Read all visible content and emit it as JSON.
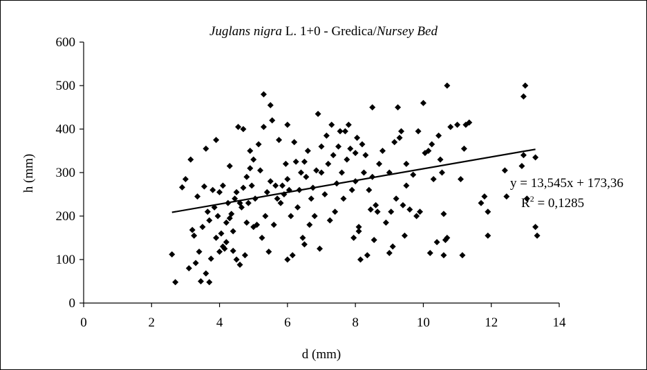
{
  "chart_data": {
    "type": "scatter",
    "title": "",
    "title_parts": {
      "species": "Juglans nigra",
      "rest": " L. 1+0 - Gredica/",
      "bed": "Nursey Bed"
    },
    "xlabel": "d (mm)",
    "ylabel": "h (mm)",
    "xlim": [
      0,
      14
    ],
    "ylim": [
      0,
      600
    ],
    "x_ticks": [
      "0",
      "2",
      "4",
      "6",
      "8",
      "10",
      "12",
      "14"
    ],
    "y_ticks": [
      "0",
      "100",
      "200",
      "300",
      "400",
      "500",
      "600"
    ],
    "grid": false,
    "legend": "none",
    "marker": "diamond",
    "marker_color": "#000000",
    "trendline": {
      "type": "linear",
      "slope": 13.545,
      "intercept": 173.36,
      "x_range": [
        2.6,
        13.3
      ],
      "equation_label": "y = 13,545x + 173,36",
      "r2_prefix": "R",
      "r2_sup": "2",
      "r2_suffix": " = 0,1285"
    },
    "points": [
      [
        2.6,
        112
      ],
      [
        2.7,
        48
      ],
      [
        2.9,
        266
      ],
      [
        3.0,
        285
      ],
      [
        3.1,
        80
      ],
      [
        3.15,
        330
      ],
      [
        3.2,
        168
      ],
      [
        3.25,
        155
      ],
      [
        3.3,
        92
      ],
      [
        3.35,
        245
      ],
      [
        3.4,
        118
      ],
      [
        3.45,
        50
      ],
      [
        3.5,
        175
      ],
      [
        3.55,
        268
      ],
      [
        3.6,
        68
      ],
      [
        3.6,
        355
      ],
      [
        3.65,
        210
      ],
      [
        3.7,
        190
      ],
      [
        3.7,
        48
      ],
      [
        3.75,
        102
      ],
      [
        3.8,
        260
      ],
      [
        3.85,
        220
      ],
      [
        3.9,
        150
      ],
      [
        3.9,
        375
      ],
      [
        3.95,
        200
      ],
      [
        4.0,
        118
      ],
      [
        4.0,
        255
      ],
      [
        4.05,
        160
      ],
      [
        4.1,
        130
      ],
      [
        4.1,
        270
      ],
      [
        4.15,
        125
      ],
      [
        4.2,
        185
      ],
      [
        4.2,
        140
      ],
      [
        4.25,
        230
      ],
      [
        4.3,
        315
      ],
      [
        4.3,
        195
      ],
      [
        4.35,
        205
      ],
      [
        4.4,
        120
      ],
      [
        4.4,
        165
      ],
      [
        4.45,
        240
      ],
      [
        4.5,
        100
      ],
      [
        4.5,
        255
      ],
      [
        4.55,
        405
      ],
      [
        4.6,
        88
      ],
      [
        4.6,
        230
      ],
      [
        4.65,
        220
      ],
      [
        4.7,
        400
      ],
      [
        4.7,
        265
      ],
      [
        4.75,
        110
      ],
      [
        4.8,
        185
      ],
      [
        4.8,
        290
      ],
      [
        4.85,
        230
      ],
      [
        4.9,
        310
      ],
      [
        4.9,
        350
      ],
      [
        4.95,
        270
      ],
      [
        5.0,
        175
      ],
      [
        5.0,
        330
      ],
      [
        5.05,
        240
      ],
      [
        5.1,
        180
      ],
      [
        5.15,
        365
      ],
      [
        5.2,
        305
      ],
      [
        5.25,
        150
      ],
      [
        5.3,
        480
      ],
      [
        5.3,
        405
      ],
      [
        5.35,
        200
      ],
      [
        5.4,
        255
      ],
      [
        5.45,
        118
      ],
      [
        5.5,
        280
      ],
      [
        5.5,
        455
      ],
      [
        5.55,
        420
      ],
      [
        5.6,
        180
      ],
      [
        5.65,
        270
      ],
      [
        5.7,
        240
      ],
      [
        5.75,
        375
      ],
      [
        5.8,
        230
      ],
      [
        5.85,
        270
      ],
      [
        5.9,
        250
      ],
      [
        5.95,
        320
      ],
      [
        6.0,
        100
      ],
      [
        6.0,
        410
      ],
      [
        6.0,
        285
      ],
      [
        6.05,
        260
      ],
      [
        6.1,
        200
      ],
      [
        6.15,
        110
      ],
      [
        6.2,
        370
      ],
      [
        6.25,
        325
      ],
      [
        6.3,
        220
      ],
      [
        6.35,
        260
      ],
      [
        6.4,
        300
      ],
      [
        6.45,
        150
      ],
      [
        6.5,
        135
      ],
      [
        6.5,
        325
      ],
      [
        6.55,
        290
      ],
      [
        6.6,
        350
      ],
      [
        6.65,
        180
      ],
      [
        6.7,
        240
      ],
      [
        6.75,
        265
      ],
      [
        6.8,
        200
      ],
      [
        6.85,
        305
      ],
      [
        6.9,
        435
      ],
      [
        6.95,
        125
      ],
      [
        7.0,
        360
      ],
      [
        7.0,
        300
      ],
      [
        7.1,
        250
      ],
      [
        7.15,
        385
      ],
      [
        7.2,
        320
      ],
      [
        7.25,
        190
      ],
      [
        7.3,
        410
      ],
      [
        7.35,
        340
      ],
      [
        7.4,
        210
      ],
      [
        7.45,
        275
      ],
      [
        7.5,
        360
      ],
      [
        7.55,
        395
      ],
      [
        7.6,
        300
      ],
      [
        7.65,
        240
      ],
      [
        7.7,
        395
      ],
      [
        7.75,
        330
      ],
      [
        7.8,
        410
      ],
      [
        7.85,
        355
      ],
      [
        7.9,
        260
      ],
      [
        7.95,
        150
      ],
      [
        8.0,
        280
      ],
      [
        8.0,
        345
      ],
      [
        8.05,
        380
      ],
      [
        8.1,
        165
      ],
      [
        8.1,
        175
      ],
      [
        8.15,
        100
      ],
      [
        8.2,
        365
      ],
      [
        8.25,
        300
      ],
      [
        8.3,
        340
      ],
      [
        8.35,
        110
      ],
      [
        8.4,
        260
      ],
      [
        8.45,
        215
      ],
      [
        8.5,
        450
      ],
      [
        8.5,
        290
      ],
      [
        8.55,
        145
      ],
      [
        8.6,
        225
      ],
      [
        8.65,
        210
      ],
      [
        8.7,
        320
      ],
      [
        8.8,
        350
      ],
      [
        8.9,
        185
      ],
      [
        9.0,
        115
      ],
      [
        9.0,
        300
      ],
      [
        9.05,
        210
      ],
      [
        9.1,
        130
      ],
      [
        9.15,
        370
      ],
      [
        9.2,
        240
      ],
      [
        9.25,
        450
      ],
      [
        9.3,
        380
      ],
      [
        9.35,
        395
      ],
      [
        9.4,
        225
      ],
      [
        9.45,
        155
      ],
      [
        9.5,
        270
      ],
      [
        9.5,
        320
      ],
      [
        9.6,
        215
      ],
      [
        9.7,
        295
      ],
      [
        9.8,
        200
      ],
      [
        9.85,
        395
      ],
      [
        9.9,
        210
      ],
      [
        10.0,
        460
      ],
      [
        10.05,
        345
      ],
      [
        10.15,
        350
      ],
      [
        10.2,
        115
      ],
      [
        10.25,
        365
      ],
      [
        10.3,
        285
      ],
      [
        10.4,
        140
      ],
      [
        10.45,
        385
      ],
      [
        10.5,
        330
      ],
      [
        10.55,
        300
      ],
      [
        10.6,
        110
      ],
      [
        10.6,
        205
      ],
      [
        10.65,
        145
      ],
      [
        10.7,
        500
      ],
      [
        10.7,
        150
      ],
      [
        10.8,
        405
      ],
      [
        11.0,
        410
      ],
      [
        11.1,
        285
      ],
      [
        11.15,
        110
      ],
      [
        11.2,
        355
      ],
      [
        11.25,
        410
      ],
      [
        11.35,
        415
      ],
      [
        11.7,
        230
      ],
      [
        11.8,
        245
      ],
      [
        11.9,
        155
      ],
      [
        11.9,
        210
      ],
      [
        12.4,
        305
      ],
      [
        12.45,
        245
      ],
      [
        12.9,
        315
      ],
      [
        12.95,
        340
      ],
      [
        12.95,
        475
      ],
      [
        13.0,
        500
      ],
      [
        13.05,
        240
      ],
      [
        13.3,
        335
      ],
      [
        13.3,
        175
      ],
      [
        13.35,
        155
      ]
    ]
  }
}
